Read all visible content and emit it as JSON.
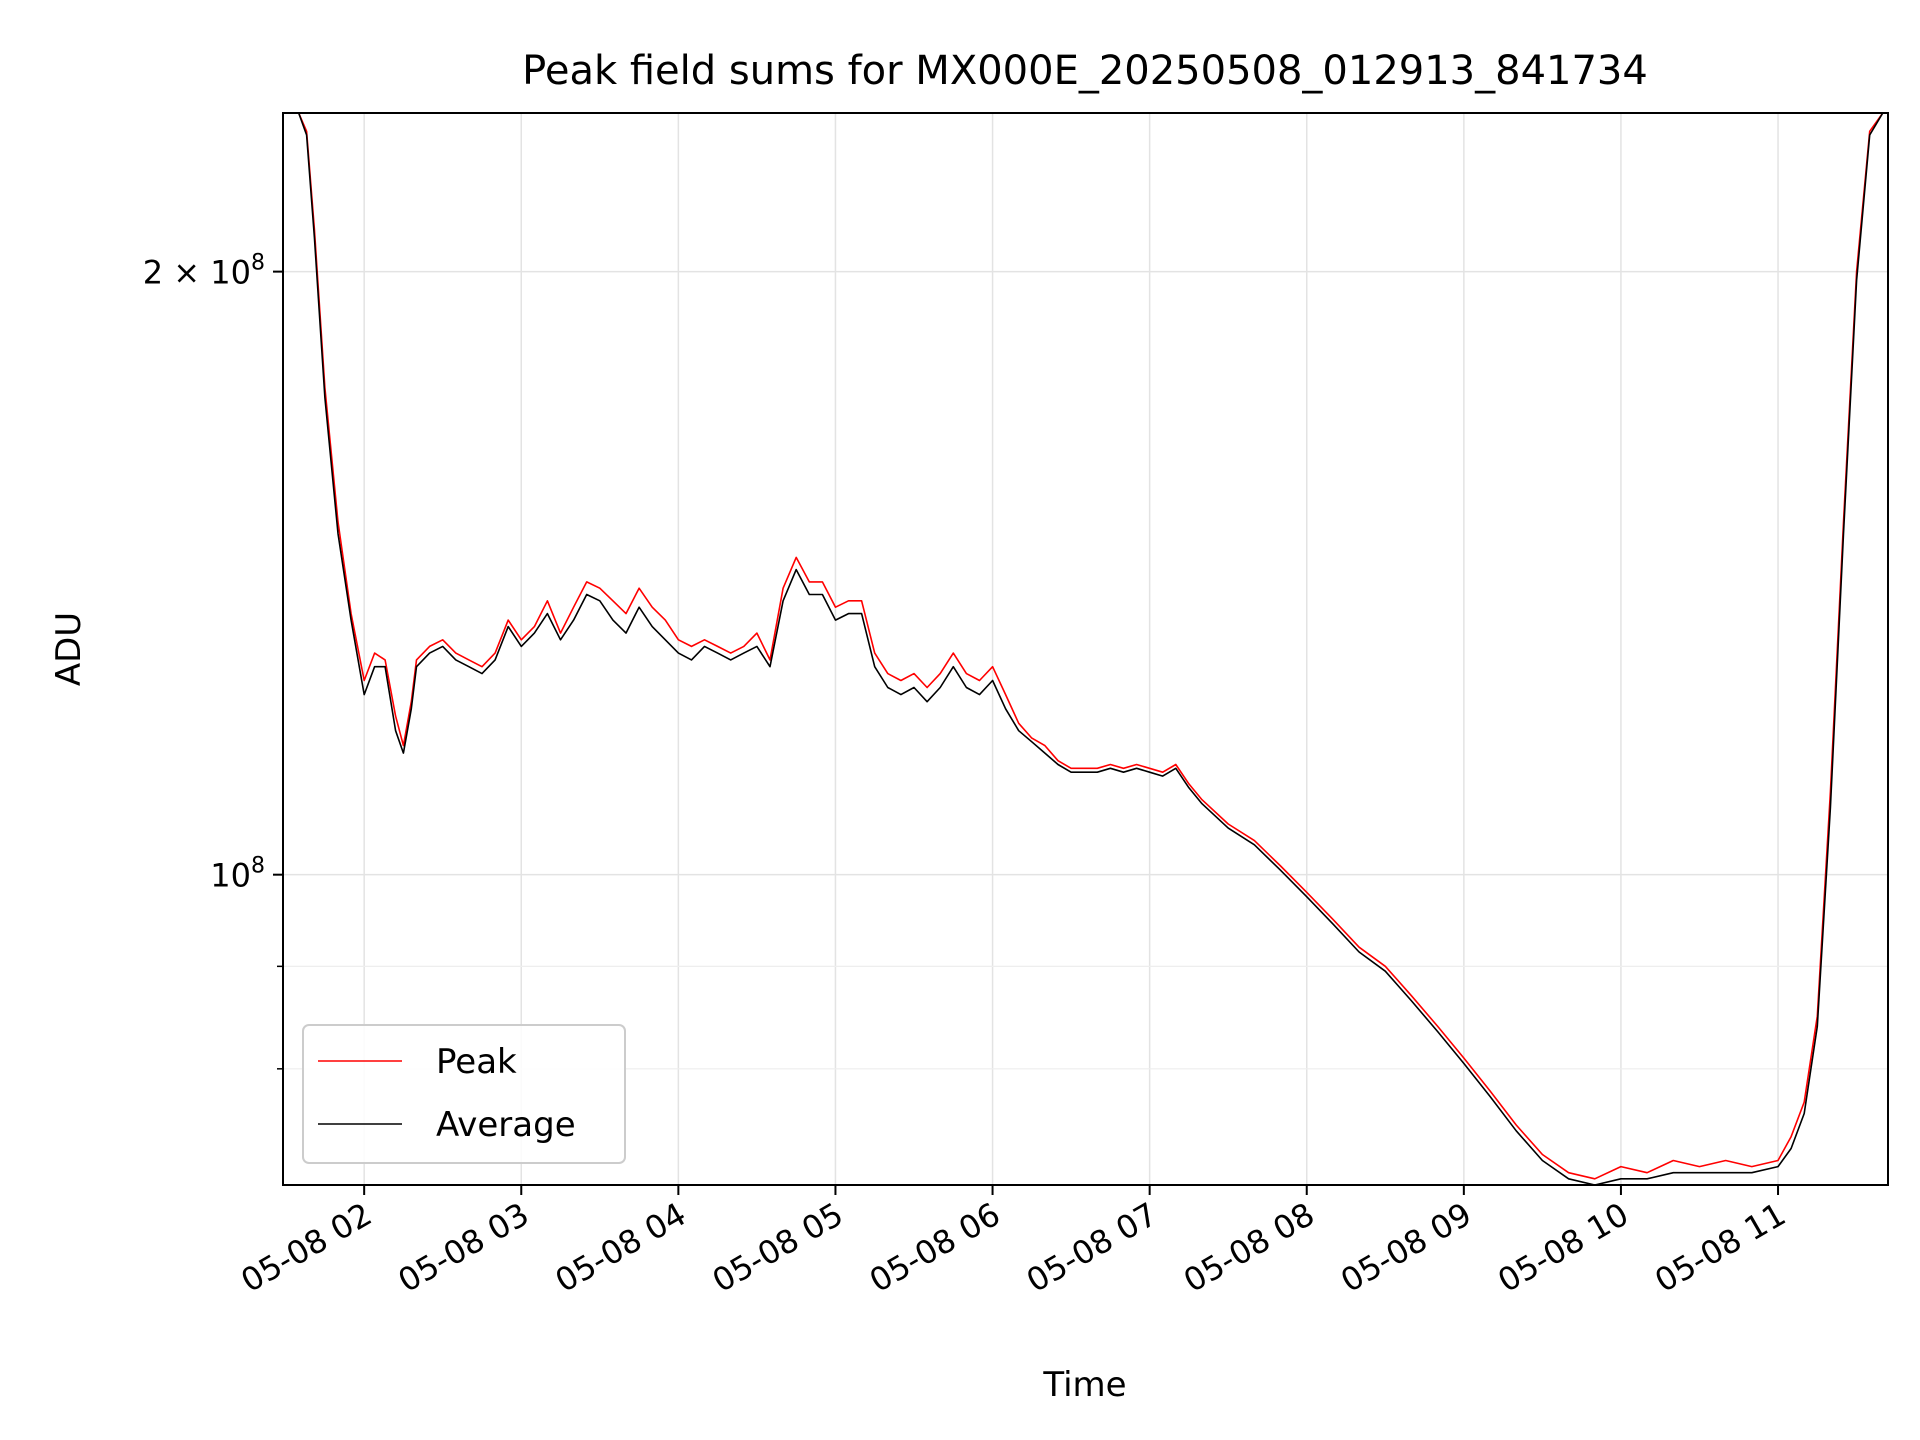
{
  "chart_data": {
    "type": "line",
    "title": "Peak field sums for MX000E_20250508_012913_841734",
    "xlabel": "Time",
    "ylabel": "ADU",
    "x_type": "time",
    "y_scale": "log",
    "xlim": [
      "2025-05-08 01:29",
      "2025-05-08 11:42"
    ],
    "ylim": [
      70000000,
      240000000
    ],
    "grid": true,
    "legend_position": "lower-left",
    "x_ticks": [
      {
        "value": "2025-05-08 02:00",
        "label": "05-08 02"
      },
      {
        "value": "2025-05-08 03:00",
        "label": "05-08 03"
      },
      {
        "value": "2025-05-08 04:00",
        "label": "05-08 04"
      },
      {
        "value": "2025-05-08 05:00",
        "label": "05-08 05"
      },
      {
        "value": "2025-05-08 06:00",
        "label": "05-08 06"
      },
      {
        "value": "2025-05-08 07:00",
        "label": "05-08 07"
      },
      {
        "value": "2025-05-08 08:00",
        "label": "05-08 08"
      },
      {
        "value": "2025-05-08 09:00",
        "label": "05-08 09"
      },
      {
        "value": "2025-05-08 10:00",
        "label": "05-08 10"
      },
      {
        "value": "2025-05-08 11:00",
        "label": "05-08 11"
      }
    ],
    "y_ticks_major": [
      {
        "value": 100000000,
        "label_base": "10",
        "label_exp": "8"
      },
      {
        "value": 200000000,
        "label_base": "2 × 10",
        "label_exp": "8"
      }
    ],
    "y_ticks_minor": [
      80000000,
      90000000
    ],
    "series": [
      {
        "name": "Peak",
        "color": "#ff0000",
        "x": [
          "2025-05-08 01:29",
          "2025-05-08 01:35",
          "2025-05-08 01:38",
          "2025-05-08 01:41",
          "2025-05-08 01:45",
          "2025-05-08 01:50",
          "2025-05-08 01:55",
          "2025-05-08 02:00",
          "2025-05-08 02:04",
          "2025-05-08 02:08",
          "2025-05-08 02:12",
          "2025-05-08 02:15",
          "2025-05-08 02:18",
          "2025-05-08 02:20",
          "2025-05-08 02:25",
          "2025-05-08 02:30",
          "2025-05-08 02:35",
          "2025-05-08 02:40",
          "2025-05-08 02:45",
          "2025-05-08 02:50",
          "2025-05-08 02:55",
          "2025-05-08 03:00",
          "2025-05-08 03:05",
          "2025-05-08 03:10",
          "2025-05-08 03:15",
          "2025-05-08 03:20",
          "2025-05-08 03:25",
          "2025-05-08 03:30",
          "2025-05-08 03:35",
          "2025-05-08 03:40",
          "2025-05-08 03:45",
          "2025-05-08 03:50",
          "2025-05-08 03:55",
          "2025-05-08 04:00",
          "2025-05-08 04:05",
          "2025-05-08 04:10",
          "2025-05-08 04:15",
          "2025-05-08 04:20",
          "2025-05-08 04:25",
          "2025-05-08 04:30",
          "2025-05-08 04:35",
          "2025-05-08 04:40",
          "2025-05-08 04:45",
          "2025-05-08 04:50",
          "2025-05-08 04:55",
          "2025-05-08 05:00",
          "2025-05-08 05:05",
          "2025-05-08 05:10",
          "2025-05-08 05:15",
          "2025-05-08 05:20",
          "2025-05-08 05:25",
          "2025-05-08 05:30",
          "2025-05-08 05:35",
          "2025-05-08 05:40",
          "2025-05-08 05:45",
          "2025-05-08 05:50",
          "2025-05-08 05:55",
          "2025-05-08 06:00",
          "2025-05-08 06:05",
          "2025-05-08 06:10",
          "2025-05-08 06:15",
          "2025-05-08 06:20",
          "2025-05-08 06:25",
          "2025-05-08 06:30",
          "2025-05-08 06:35",
          "2025-05-08 06:40",
          "2025-05-08 06:45",
          "2025-05-08 06:50",
          "2025-05-08 06:55",
          "2025-05-08 07:00",
          "2025-05-08 07:05",
          "2025-05-08 07:10",
          "2025-05-08 07:15",
          "2025-05-08 07:20",
          "2025-05-08 07:30",
          "2025-05-08 07:40",
          "2025-05-08 07:50",
          "2025-05-08 08:00",
          "2025-05-08 08:10",
          "2025-05-08 08:20",
          "2025-05-08 08:30",
          "2025-05-08 08:40",
          "2025-05-08 08:50",
          "2025-05-08 09:00",
          "2025-05-08 09:10",
          "2025-05-08 09:20",
          "2025-05-08 09:30",
          "2025-05-08 09:40",
          "2025-05-08 09:50",
          "2025-05-08 10:00",
          "2025-05-08 10:10",
          "2025-05-08 10:20",
          "2025-05-08 10:30",
          "2025-05-08 10:40",
          "2025-05-08 10:50",
          "2025-05-08 11:00",
          "2025-05-08 11:05",
          "2025-05-08 11:10",
          "2025-05-08 11:15",
          "2025-05-08 11:20",
          "2025-05-08 11:25",
          "2025-05-08 11:30",
          "2025-05-08 11:35",
          "2025-05-08 11:40"
        ],
        "y": [
          240000000,
          240000000,
          235000000,
          210000000,
          175000000,
          150000000,
          135000000,
          125000000,
          129000000,
          128000000,
          120000000,
          116000000,
          122000000,
          128000000,
          130000000,
          131000000,
          129000000,
          128000000,
          127000000,
          129000000,
          134000000,
          131000000,
          133000000,
          137000000,
          132000000,
          136000000,
          140000000,
          139000000,
          137000000,
          135000000,
          139000000,
          136000000,
          134000000,
          131000000,
          130000000,
          131000000,
          130000000,
          129000000,
          130000000,
          132000000,
          128000000,
          139000000,
          144000000,
          140000000,
          140000000,
          136000000,
          137000000,
          137000000,
          129000000,
          126000000,
          125000000,
          126000000,
          124000000,
          126000000,
          129000000,
          126000000,
          125000000,
          127000000,
          123000000,
          119000000,
          117000000,
          116000000,
          114000000,
          113000000,
          113000000,
          113000000,
          113500000,
          113000000,
          113500000,
          113000000,
          112500000,
          113500000,
          111000000,
          109000000,
          106000000,
          104000000,
          101000000,
          98000000,
          95000000,
          92000000,
          90000000,
          87000000,
          84000000,
          81000000,
          78000000,
          75000000,
          72500000,
          71000000,
          70500000,
          71500000,
          71000000,
          72000000,
          71500000,
          72000000,
          71500000,
          72000000,
          74000000,
          77000000,
          85000000,
          110000000,
          150000000,
          200000000,
          235000000,
          240000000
        ]
      },
      {
        "name": "Average",
        "color": "#000000",
        "x": [
          "2025-05-08 01:29",
          "2025-05-08 01:35",
          "2025-05-08 01:38",
          "2025-05-08 01:41",
          "2025-05-08 01:45",
          "2025-05-08 01:50",
          "2025-05-08 01:55",
          "2025-05-08 02:00",
          "2025-05-08 02:04",
          "2025-05-08 02:08",
          "2025-05-08 02:12",
          "2025-05-08 02:15",
          "2025-05-08 02:18",
          "2025-05-08 02:20",
          "2025-05-08 02:25",
          "2025-05-08 02:30",
          "2025-05-08 02:35",
          "2025-05-08 02:40",
          "2025-05-08 02:45",
          "2025-05-08 02:50",
          "2025-05-08 02:55",
          "2025-05-08 03:00",
          "2025-05-08 03:05",
          "2025-05-08 03:10",
          "2025-05-08 03:15",
          "2025-05-08 03:20",
          "2025-05-08 03:25",
          "2025-05-08 03:30",
          "2025-05-08 03:35",
          "2025-05-08 03:40",
          "2025-05-08 03:45",
          "2025-05-08 03:50",
          "2025-05-08 03:55",
          "2025-05-08 04:00",
          "2025-05-08 04:05",
          "2025-05-08 04:10",
          "2025-05-08 04:15",
          "2025-05-08 04:20",
          "2025-05-08 04:25",
          "2025-05-08 04:30",
          "2025-05-08 04:35",
          "2025-05-08 04:40",
          "2025-05-08 04:45",
          "2025-05-08 04:50",
          "2025-05-08 04:55",
          "2025-05-08 05:00",
          "2025-05-08 05:05",
          "2025-05-08 05:10",
          "2025-05-08 05:15",
          "2025-05-08 05:20",
          "2025-05-08 05:25",
          "2025-05-08 05:30",
          "2025-05-08 05:35",
          "2025-05-08 05:40",
          "2025-05-08 05:45",
          "2025-05-08 05:50",
          "2025-05-08 05:55",
          "2025-05-08 06:00",
          "2025-05-08 06:05",
          "2025-05-08 06:10",
          "2025-05-08 06:15",
          "2025-05-08 06:20",
          "2025-05-08 06:25",
          "2025-05-08 06:30",
          "2025-05-08 06:35",
          "2025-05-08 06:40",
          "2025-05-08 06:45",
          "2025-05-08 06:50",
          "2025-05-08 06:55",
          "2025-05-08 07:00",
          "2025-05-08 07:05",
          "2025-05-08 07:10",
          "2025-05-08 07:15",
          "2025-05-08 07:20",
          "2025-05-08 07:30",
          "2025-05-08 07:40",
          "2025-05-08 07:50",
          "2025-05-08 08:00",
          "2025-05-08 08:10",
          "2025-05-08 08:20",
          "2025-05-08 08:30",
          "2025-05-08 08:40",
          "2025-05-08 08:50",
          "2025-05-08 09:00",
          "2025-05-08 09:10",
          "2025-05-08 09:20",
          "2025-05-08 09:30",
          "2025-05-08 09:40",
          "2025-05-08 09:50",
          "2025-05-08 10:00",
          "2025-05-08 10:10",
          "2025-05-08 10:20",
          "2025-05-08 10:30",
          "2025-05-08 10:40",
          "2025-05-08 10:50",
          "2025-05-08 11:00",
          "2025-05-08 11:05",
          "2025-05-08 11:10",
          "2025-05-08 11:15",
          "2025-05-08 11:20",
          "2025-05-08 11:25",
          "2025-05-08 11:30",
          "2025-05-08 11:35",
          "2025-05-08 11:40"
        ],
        "y": [
          240000000,
          240000000,
          234000000,
          208000000,
          173000000,
          148000000,
          134000000,
          123000000,
          127000000,
          127000000,
          118000000,
          115000000,
          121000000,
          127000000,
          129000000,
          130000000,
          128000000,
          127000000,
          126000000,
          128000000,
          133000000,
          130000000,
          132000000,
          135000000,
          131000000,
          134000000,
          138000000,
          137000000,
          134000000,
          132000000,
          136000000,
          133000000,
          131000000,
          129000000,
          128000000,
          130000000,
          129000000,
          128000000,
          129000000,
          130000000,
          127000000,
          137000000,
          142000000,
          138000000,
          138000000,
          134000000,
          135000000,
          135000000,
          127000000,
          124000000,
          123000000,
          124000000,
          122000000,
          124000000,
          127000000,
          124000000,
          123000000,
          125000000,
          121000000,
          118000000,
          116500000,
          115000000,
          113500000,
          112500000,
          112500000,
          112500000,
          113000000,
          112500000,
          113000000,
          112500000,
          112000000,
          113000000,
          110500000,
          108500000,
          105500000,
          103500000,
          100500000,
          97500000,
          94500000,
          91500000,
          89500000,
          86500000,
          83500000,
          80500000,
          77500000,
          74500000,
          72000000,
          70500000,
          70000000,
          70500000,
          70500000,
          71000000,
          71000000,
          71000000,
          71000000,
          71500000,
          73000000,
          76000000,
          84000000,
          108000000,
          148000000,
          198000000,
          234000000,
          240000000
        ]
      }
    ]
  }
}
